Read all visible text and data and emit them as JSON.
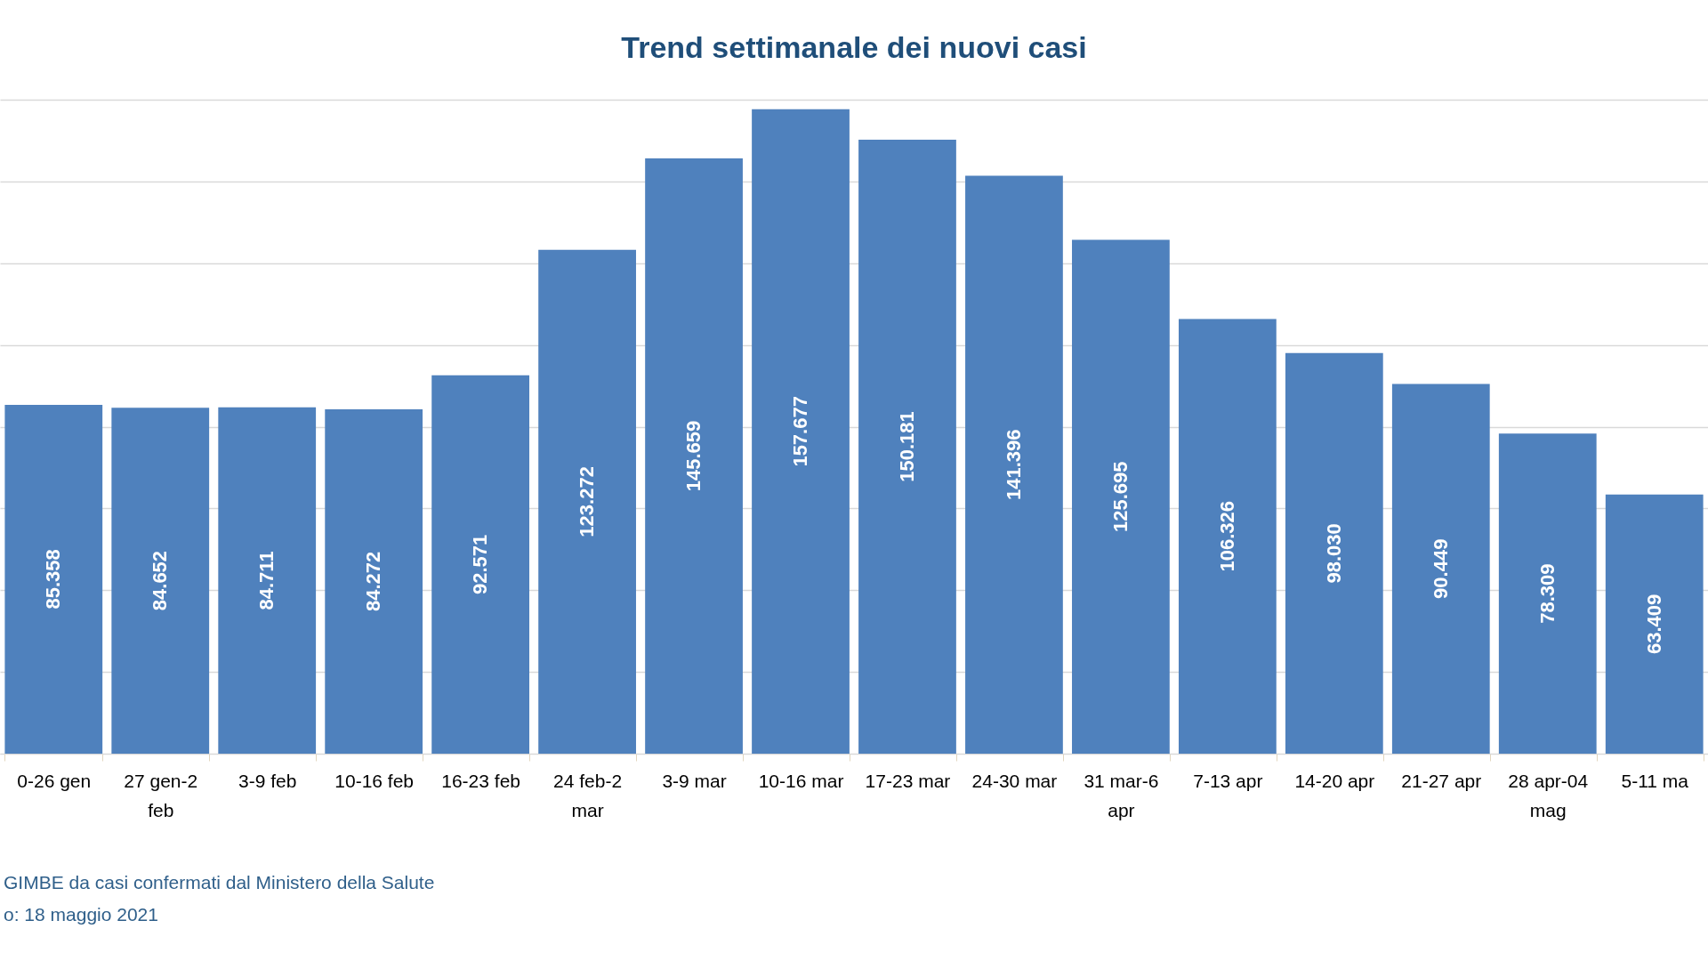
{
  "chart_data": {
    "type": "bar",
    "title": "Trend settimanale dei nuovi casi",
    "categories": [
      "0-26 gen",
      "27 gen-2 feb",
      "3-9 feb",
      "10-16 feb",
      "16-23 feb",
      "24 feb-2 mar",
      "3-9 mar",
      "10-16 mar",
      "17-23 mar",
      "24-30 mar",
      "31 mar-6 apr",
      "7-13 apr",
      "14-20 apr",
      "21-27 apr",
      "28 apr-04 mag",
      "5-11 ma"
    ],
    "values": [
      85358,
      84652,
      84711,
      84272,
      92571,
      123272,
      145659,
      157677,
      150181,
      141396,
      125695,
      106326,
      98030,
      90449,
      78309,
      63409
    ],
    "value_labels": [
      "85.358",
      "84.652",
      "84.711",
      "84.272",
      "92.571",
      "123.272",
      "145.659",
      "157.677",
      "150.181",
      "141.396",
      "125.695",
      "106.326",
      "98.030",
      "90.449",
      "78.309",
      "63.409"
    ],
    "color": "#4f81bd",
    "ylim": [
      0,
      160000
    ],
    "yticks": [
      {
        "value": 0,
        "label": null
      },
      {
        "value": 20000,
        "label": null
      },
      {
        "value": 40000,
        "label": null
      },
      {
        "value": 60000,
        "label": null
      },
      {
        "value": 80000,
        "label": null
      },
      {
        "value": 100000,
        "label": null
      },
      {
        "value": 120000,
        "label": null
      },
      {
        "value": 140000,
        "label": null
      },
      {
        "value": 160000,
        "label": null
      }
    ],
    "grid": "y",
    "tick_labels": "x",
    "annotations": [
      "GIMBE da casi confermati dal Ministero della Salute",
      "o: 18 maggio 2021"
    ]
  }
}
